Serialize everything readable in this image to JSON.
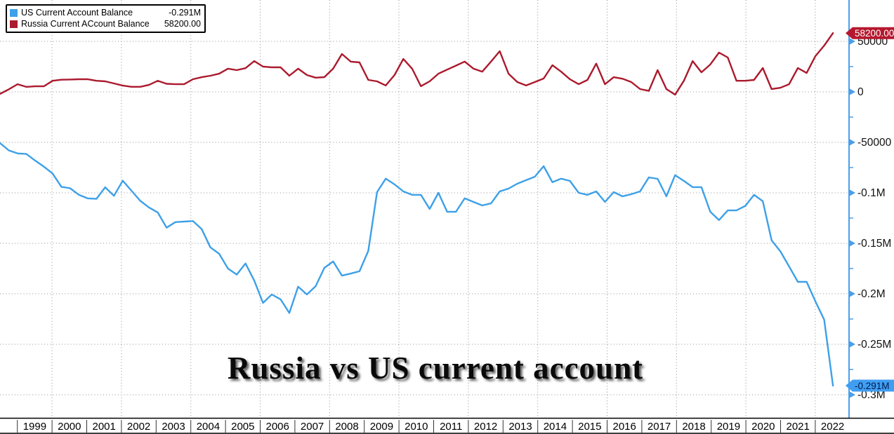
{
  "title": "Russia vs US current account",
  "legend": {
    "items": [
      {
        "label": "US Current Account Balance",
        "value": "-0.291M",
        "color": "#3da0e8"
      },
      {
        "label": "Russia Current ACcount Balance",
        "value": "58200.00",
        "color": "#ab1a2d"
      }
    ]
  },
  "badges": {
    "russia": {
      "text": "58200.00",
      "value": 58200,
      "bg": "#b5182e",
      "fg": "#ffffff"
    },
    "us": {
      "text": "-0.291M",
      "value": -291000,
      "bg": "#3f9ef2",
      "fg": "#001a4d"
    }
  },
  "chart_data": {
    "type": "line",
    "frequency": "quarterly",
    "x_start": "1998 Q3",
    "x_end": "2022 Q2",
    "grid": "dotted",
    "legend_position": "top-left",
    "ylim": [
      -300000,
      60000
    ],
    "y_ticks": [
      {
        "label": "50000",
        "value": 50000
      },
      {
        "label": "0",
        "value": 0
      },
      {
        "label": "-50000",
        "value": -50000
      },
      {
        "label": "-0.1M",
        "value": -100000
      },
      {
        "label": "-0.15M",
        "value": -150000
      },
      {
        "label": "-0.2M",
        "value": -200000
      },
      {
        "label": "-0.25M",
        "value": -250000
      },
      {
        "label": "-0.3M",
        "value": -300000
      }
    ],
    "x_year_labels": [
      "1999",
      "2000",
      "2001",
      "2002",
      "2003",
      "2004",
      "2005",
      "2006",
      "2007",
      "2008",
      "2009",
      "2010",
      "2011",
      "2012",
      "2013",
      "2014",
      "2015",
      "2016",
      "2017",
      "2018",
      "2019",
      "2020",
      "2021",
      "2022"
    ],
    "series": [
      {
        "name": "US Current Account Balance",
        "color": "#3da0e8",
        "current_value": -291000,
        "current_value_label": "-0.291M",
        "values": [
          -50700,
          -58000,
          -61000,
          -61500,
          -68000,
          -74000,
          -81000,
          -94000,
          -95500,
          -102000,
          -105500,
          -106000,
          -94500,
          -103000,
          -88000,
          -98000,
          -108000,
          -114500,
          -119500,
          -134500,
          -129000,
          -128500,
          -128000,
          -136000,
          -154000,
          -160400,
          -175000,
          -181000,
          -170000,
          -187000,
          -209000,
          -200700,
          -205500,
          -219000,
          -193000,
          -200700,
          -192400,
          -174300,
          -168000,
          -182000,
          -180000,
          -177700,
          -157600,
          -99300,
          -86000,
          -91700,
          -98600,
          -102000,
          -102000,
          -116000,
          -100000,
          -118800,
          -118800,
          -105500,
          -109000,
          -112500,
          -110500,
          -98600,
          -95800,
          -91000,
          -87500,
          -84000,
          -73600,
          -89500,
          -86000,
          -88200,
          -100000,
          -102000,
          -98600,
          -109000,
          -99300,
          -103500,
          -101400,
          -98600,
          -84700,
          -86100,
          -103500,
          -82600,
          -88200,
          -94400,
          -94400,
          -118700,
          -127000,
          -117400,
          -117400,
          -113000,
          -102000,
          -108300,
          -147000,
          -158000,
          -172900,
          -188200,
          -188200,
          -207600,
          -225700,
          -291000
        ]
      },
      {
        "name": "Russia Current ACcount Balance",
        "color": "#ab1a2d",
        "current_value": 58200,
        "current_value_label": "58200.00",
        "values": [
          -2000,
          2500,
          7600,
          4900,
          5500,
          5500,
          11000,
          12000,
          12200,
          12500,
          12500,
          11000,
          10400,
          8300,
          6200,
          5000,
          5000,
          6900,
          11000,
          8000,
          7600,
          7600,
          12500,
          14500,
          16000,
          18000,
          23000,
          21500,
          23500,
          30500,
          25000,
          24300,
          24300,
          16000,
          23000,
          16700,
          14000,
          14600,
          23000,
          37500,
          29900,
          29200,
          11800,
          10400,
          6300,
          16700,
          32600,
          23000,
          5600,
          10400,
          18000,
          22000,
          26000,
          30000,
          23000,
          20000,
          30000,
          40300,
          18000,
          9700,
          6300,
          9700,
          13200,
          26400,
          20000,
          12500,
          7600,
          11800,
          28000,
          7600,
          14500,
          13000,
          9700,
          2800,
          1000,
          21500,
          2800,
          -2800,
          11000,
          30500,
          19400,
          27000,
          38900,
          34000,
          11000,
          11000,
          11800,
          23600,
          2800,
          4000,
          7600,
          23600,
          18700,
          35400,
          45800,
          58200
        ]
      }
    ]
  }
}
